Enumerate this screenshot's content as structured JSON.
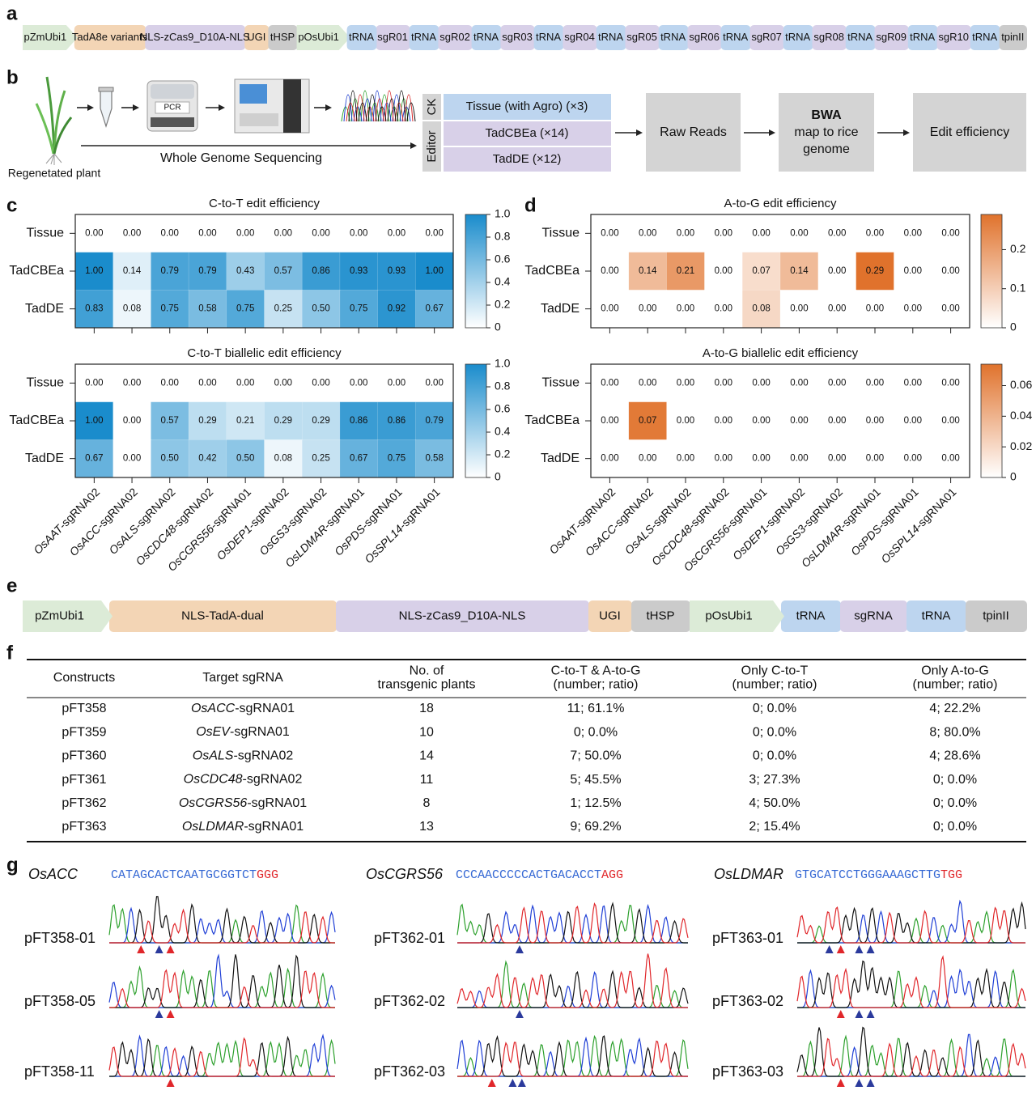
{
  "panel_labels": [
    "a",
    "b",
    "c",
    "d",
    "e",
    "f",
    "g"
  ],
  "construct_a": [
    {
      "label": "pZmUbi1",
      "color": "#dcebd7",
      "shape": "arrow"
    },
    {
      "label": "TadA8e variants",
      "color": "#f3d5b5"
    },
    {
      "label": "NLS-zCas9_D10A-NLS",
      "color": "#d8d0e8"
    },
    {
      "label": "UGI",
      "color": "#f3d5b5"
    },
    {
      "label": "tHSP",
      "color": "#cbcbcb"
    },
    {
      "label": "pOsUbi1",
      "color": "#dcebd7",
      "shape": "arrow"
    },
    {
      "label": "tRNA",
      "color": "#bdd5ef"
    },
    {
      "label": "sgR01",
      "color": "#d8d0e8"
    },
    {
      "label": "tRNA",
      "color": "#bdd5ef"
    },
    {
      "label": "sgR02",
      "color": "#d8d0e8"
    },
    {
      "label": "tRNA",
      "color": "#bdd5ef"
    },
    {
      "label": "sgR03",
      "color": "#d8d0e8"
    },
    {
      "label": "tRNA",
      "color": "#bdd5ef"
    },
    {
      "label": "sgR04",
      "color": "#d8d0e8"
    },
    {
      "label": "tRNA",
      "color": "#bdd5ef"
    },
    {
      "label": "sgR05",
      "color": "#d8d0e8"
    },
    {
      "label": "tRNA",
      "color": "#bdd5ef"
    },
    {
      "label": "sgR06",
      "color": "#d8d0e8"
    },
    {
      "label": "tRNA",
      "color": "#bdd5ef"
    },
    {
      "label": "sgR07",
      "color": "#d8d0e8"
    },
    {
      "label": "tRNA",
      "color": "#bdd5ef"
    },
    {
      "label": "sgR08",
      "color": "#d8d0e8"
    },
    {
      "label": "tRNA",
      "color": "#bdd5ef"
    },
    {
      "label": "sgR09",
      "color": "#d8d0e8"
    },
    {
      "label": "tRNA",
      "color": "#bdd5ef"
    },
    {
      "label": "sgR10",
      "color": "#d8d0e8"
    },
    {
      "label": "tRNA",
      "color": "#bdd5ef"
    },
    {
      "label": "tpinII",
      "color": "#cbcbcb"
    }
  ],
  "workflow": {
    "plant_label": "Regenetated plant",
    "pcr_label": "PCR",
    "wgs_label": "Whole Genome Sequencing",
    "groups": [
      {
        "name": "CK",
        "samples": [
          {
            "label": "Tissue (with Agro) (×3)",
            "color": "#bdd5ef"
          }
        ]
      },
      {
        "name": "Editor",
        "samples": [
          {
            "label": "TadCBEa (×14)",
            "color": "#d8d0e8"
          },
          {
            "label": "TadDE (×12)",
            "color": "#d8d0e8"
          }
        ]
      }
    ],
    "steps": [
      {
        "lines": [
          "Raw Reads"
        ]
      },
      {
        "title": "BWA",
        "lines": [
          "map to rice",
          "genome"
        ]
      },
      {
        "lines": [
          "Edit efficiency"
        ]
      }
    ]
  },
  "chart_data": [
    {
      "type": "heatmap",
      "title": "C-to-T edit efficiency",
      "color": "#1a8ccc",
      "zlim": [
        0,
        1
      ],
      "zticks": [
        0,
        0.2,
        0.4,
        0.6,
        0.8,
        {
          "value": 1,
          "label": "1.0"
        }
      ],
      "series": [
        {
          "name": "Tissue",
          "values": [
            0,
            0,
            0,
            0,
            0,
            0,
            0,
            0,
            0,
            0
          ],
          "value_labels": [
            "0.00",
            "0.00",
            "0.00",
            "0.00",
            "0.00",
            "0.00",
            "0.00",
            "0.00",
            "0.00",
            "0.00"
          ]
        },
        {
          "name": "TadCBEa",
          "values": [
            1,
            0.14,
            0.79,
            0.79,
            0.43,
            0.57,
            0.86,
            0.93,
            0.93,
            1
          ],
          "value_labels": [
            "1.00",
            "0.14",
            "0.79",
            "0.79",
            "0.43",
            "0.57",
            "0.86",
            "0.93",
            "0.93",
            "1.00"
          ]
        },
        {
          "name": "TadDE",
          "values": [
            0.83,
            0.08,
            0.75,
            0.58,
            0.75,
            0.25,
            0.5,
            0.75,
            0.92,
            0.67
          ],
          "value_labels": [
            "0.83",
            "0.08",
            "0.75",
            "0.58",
            "0.75",
            "0.25",
            "0.50",
            "0.75",
            "0.92",
            "0.67"
          ]
        }
      ]
    },
    {
      "type": "heatmap",
      "title": "C-to-T biallelic edit efficiency",
      "color": "#1a8ccc",
      "zlim": [
        0,
        1
      ],
      "zticks": [
        0,
        0.2,
        0.4,
        0.6,
        0.8,
        {
          "value": 1,
          "label": "1.0"
        }
      ],
      "categories": [
        "OsAAT-sgRNA02",
        "OsACC-sgRNA02",
        "OsALS-sgRNA02",
        "OsCDC48-sgRNA02",
        "OsCGRS56-sgRNA01",
        "OsDEP1-sgRNA02",
        "OsGS3-sgRNA02",
        "OsLDMAR-sgRNA01",
        "OsPDS-sgRNA01",
        "OsSPL14-sgRNA01"
      ],
      "series": [
        {
          "name": "Tissue",
          "values": [
            0,
            0,
            0,
            0,
            0,
            0,
            0,
            0,
            0,
            0
          ],
          "value_labels": [
            "0.00",
            "0.00",
            "0.00",
            "0.00",
            "0.00",
            "0.00",
            "0.00",
            "0.00",
            "0.00",
            "0.00"
          ]
        },
        {
          "name": "TadCBEa",
          "values": [
            1,
            0,
            0.57,
            0.29,
            0.21,
            0.29,
            0.29,
            0.86,
            0.86,
            0.79
          ],
          "value_labels": [
            "1.00",
            "0.00",
            "0.57",
            "0.29",
            "0.21",
            "0.29",
            "0.29",
            "0.86",
            "0.86",
            "0.79"
          ]
        },
        {
          "name": "TadDE",
          "values": [
            0.67,
            0,
            0.5,
            0.42,
            0.5,
            0.08,
            0.25,
            0.67,
            0.75,
            0.58
          ],
          "value_labels": [
            "0.67",
            "0.00",
            "0.50",
            "0.42",
            "0.50",
            "0.08",
            "0.25",
            "0.67",
            "0.75",
            "0.58"
          ]
        }
      ]
    },
    {
      "type": "heatmap",
      "title": "A-to-G edit efficiency",
      "color": "#e0722c",
      "zlim": [
        0,
        0.29
      ],
      "zticks": [
        0,
        0.1,
        0.2
      ],
      "series": [
        {
          "name": "Tissue",
          "values": [
            0,
            0,
            0,
            0,
            0,
            0,
            0,
            0,
            0,
            0
          ],
          "value_labels": [
            "0.00",
            "0.00",
            "0.00",
            "0.00",
            "0.00",
            "0.00",
            "0.00",
            "0.00",
            "0.00",
            "0.00"
          ]
        },
        {
          "name": "TadCBEa",
          "values": [
            0,
            0.14,
            0.21,
            0,
            0.07,
            0.14,
            0,
            0.29,
            0,
            0
          ],
          "value_labels": [
            "0.00",
            "0.14",
            "0.21",
            "0.00",
            "0.07",
            "0.14",
            "0.00",
            "0.29",
            "0.00",
            "0.00"
          ]
        },
        {
          "name": "TadDE",
          "values": [
            0,
            0,
            0,
            0,
            0.08,
            0,
            0,
            0,
            0,
            0
          ],
          "value_labels": [
            "0.00",
            "0.00",
            "0.00",
            "0.00",
            "0.08",
            "0.00",
            "0.00",
            "0.00",
            "0.00",
            "0.00"
          ]
        }
      ]
    },
    {
      "type": "heatmap",
      "title": "A-to-G biallelic edit efficiency",
      "color": "#e0722c",
      "zlim": [
        0,
        0.074
      ],
      "zticks": [
        0,
        0.02,
        0.04,
        0.06
      ],
      "categories": [
        "OsAAT-sgRNA02",
        "OsACC-sgRNA02",
        "OsALS-sgRNA02",
        "OsCDC48-sgRNA02",
        "OsCGRS56-sgRNA01",
        "OsDEP1-sgRNA02",
        "OsGS3-sgRNA02",
        "OsLDMAR-sgRNA01",
        "OsPDS-sgRNA01",
        "OsSPL14-sgRNA01"
      ],
      "series": [
        {
          "name": "Tissue",
          "values": [
            0,
            0,
            0,
            0,
            0,
            0,
            0,
            0,
            0,
            0
          ],
          "value_labels": [
            "0.00",
            "0.00",
            "0.00",
            "0.00",
            "0.00",
            "0.00",
            "0.00",
            "0.00",
            "0.00",
            "0.00"
          ]
        },
        {
          "name": "TadCBEa",
          "values": [
            0,
            0.07,
            0,
            0,
            0,
            0,
            0,
            0,
            0,
            0
          ],
          "value_labels": [
            "0.00",
            "0.07",
            "0.00",
            "0.00",
            "0.00",
            "0.00",
            "0.00",
            "0.00",
            "0.00",
            "0.00"
          ]
        },
        {
          "name": "TadDE",
          "values": [
            0,
            0,
            0,
            0,
            0,
            0,
            0,
            0,
            0,
            0
          ],
          "value_labels": [
            "0.00",
            "0.00",
            "0.00",
            "0.00",
            "0.00",
            "0.00",
            "0.00",
            "0.00",
            "0.00",
            "0.00"
          ]
        }
      ]
    }
  ],
  "construct_e": [
    {
      "label": "pZmUbi1",
      "color": "#dcebd7",
      "shape": "arrow"
    },
    {
      "label": "NLS-TadA-dual",
      "color": "#f3d5b5"
    },
    {
      "label": "NLS-zCas9_D10A-NLS",
      "color": "#d8d0e8"
    },
    {
      "label": "UGI",
      "color": "#f3d5b5"
    },
    {
      "label": "tHSP",
      "color": "#cbcbcb"
    },
    {
      "label": "pOsUbi1",
      "color": "#dcebd7",
      "shape": "arrow"
    },
    {
      "label": "tRNA",
      "color": "#bdd5ef"
    },
    {
      "label": "sgRNA",
      "color": "#d8d0e8"
    },
    {
      "label": "tRNA",
      "color": "#bdd5ef"
    },
    {
      "label": "tpinII",
      "color": "#cbcbcb"
    }
  ],
  "table": {
    "header": [
      [
        "Constructs"
      ],
      [
        "Target sgRNA"
      ],
      [
        "No. of",
        "transgenic plants"
      ],
      [
        "C-to-T & A-to-G",
        "(number; ratio)"
      ],
      [
        "Only C-to-T",
        "(number; ratio)"
      ],
      [
        "Only A-to-G",
        "(number; ratio)"
      ]
    ],
    "rows": [
      [
        "pFT358",
        "OsACC-sgRNA01",
        18,
        "11; 61.1%",
        "0; 0.0%",
        "4; 22.2%"
      ],
      [
        "pFT359",
        "OsEV-sgRNA01",
        10,
        "0; 0.0%",
        "0; 0.0%",
        "8; 80.0%"
      ],
      [
        "pFT360",
        "OsALS-sgRNA02",
        14,
        "7; 50.0%",
        "0; 0.0%",
        "4; 28.6%"
      ],
      [
        "pFT361",
        "OsCDC48-sgRNA02",
        11,
        "5; 45.5%",
        "3; 27.3%",
        "0; 0.0%"
      ],
      [
        "pFT362",
        "OsCGRS56-sgRNA01",
        8,
        "1; 12.5%",
        "4; 50.0%",
        "0; 0.0%"
      ],
      [
        "pFT363",
        "OsLDMAR-sgRNA01",
        13,
        "9; 69.2%",
        "2; 15.4%",
        "0; 0.0%"
      ]
    ]
  },
  "chromatograms": [
    {
      "gene": "OsACC",
      "protospacer": "CATAGCACTCAATGCGGTCT",
      "pam": "GGG",
      "samples": [
        "pFT358-01",
        "pFT358-05",
        "pFT358-11"
      ]
    },
    {
      "gene": "OsCGRS56",
      "protospacer": "CCCAACCCCCACTGACACCT",
      "pam": "AGG",
      "samples": [
        "pFT362-01",
        "pFT362-02",
        "pFT362-03"
      ]
    },
    {
      "gene": "OsLDMAR",
      "protospacer": "GTGCATCCTGGGAAAGCTTG",
      "pam": "TGG",
      "samples": [
        "pFT363-01",
        "pFT363-02",
        "pFT363-03"
      ]
    }
  ]
}
